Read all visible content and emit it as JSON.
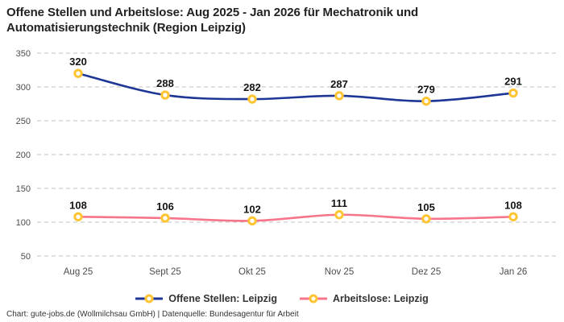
{
  "title": {
    "line1": "Offene Stellen und Arbeitslose: Aug 2025 - Jan 2026 für Mechatronik und",
    "line2": "Automatisierungstechnik (Region Leipzig)"
  },
  "footer": "Chart: gute-jobs.de (Wollmilchsau GmbH) | Datenquelle: Bundesagentur für Arbeit",
  "colors": {
    "offene_stellen_line": "#1e3796",
    "arbeitslose_line": "#f7758a",
    "marker_ring": "#ffc431",
    "marker_fill": "#ffffff",
    "gridline": "#cdcdcd",
    "axis_text": "#4d4d4d",
    "label_text": "#141414"
  },
  "chart_data": {
    "type": "line",
    "title": "Offene Stellen und Arbeitslose: Aug 2025 - Jan 2026 für Mechatronik und Automatisierungstechnik (Region Leipzig)",
    "categories": [
      "Aug 25",
      "Sept 25",
      "Okt 25",
      "Nov 25",
      "Dez 25",
      "Jan 26"
    ],
    "series": [
      {
        "name": "Offene Stellen: Leipzig",
        "color": "#1e3796",
        "values": [
          320,
          288,
          282,
          287,
          279,
          291
        ]
      },
      {
        "name": "Arbeitslose: Leipzig",
        "color": "#f7758a",
        "values": [
          108,
          106,
          102,
          111,
          105,
          108
        ]
      }
    ],
    "marker_color": "#ffc431",
    "grid_color": "#cdcdcd",
    "grid_style": "dashed horizontal",
    "yticks": [
      350,
      300,
      250,
      200,
      150,
      100,
      50
    ],
    "ylim": [
      50,
      350
    ],
    "xlabel": "",
    "ylabel": "",
    "legend_position": "bottom",
    "data_labels": "shown above each point"
  }
}
